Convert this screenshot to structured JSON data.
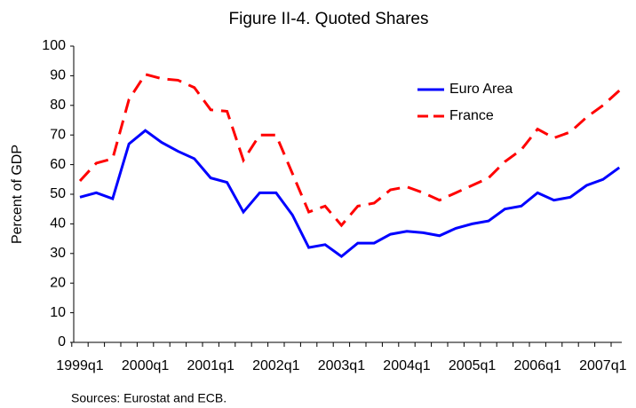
{
  "chart_data": {
    "type": "line",
    "title": "Figure II-4. Quoted Shares",
    "ylabel": "Percent of GDP",
    "source": "Sources: Eurostat and ECB.",
    "categories": [
      "1999q1",
      null,
      null,
      null,
      "2000q1",
      null,
      null,
      null,
      "2001q1",
      null,
      null,
      null,
      "2002q1",
      null,
      null,
      null,
      "2003q1",
      null,
      null,
      null,
      "2004q1",
      null,
      null,
      null,
      "2005q1",
      null,
      null,
      null,
      "2006q1",
      null,
      null,
      null,
      "2007q1",
      null
    ],
    "series": [
      {
        "name": "Euro Area",
        "color": "#0000ff",
        "dash": "solid",
        "values": [
          49,
          50.5,
          48.5,
          67,
          71.5,
          67.5,
          64.5,
          62,
          55.5,
          54,
          44,
          50.5,
          50.5,
          43,
          32,
          33,
          29,
          33.5,
          33.5,
          36.5,
          37.5,
          37,
          36,
          38.5,
          40,
          41,
          45,
          46,
          50.5,
          48,
          49,
          53,
          55,
          59
        ]
      },
      {
        "name": "France",
        "color": "#ff0000",
        "dash": "dashed",
        "values": [
          54.5,
          60.5,
          62,
          82,
          90.5,
          89,
          88.5,
          86,
          78.5,
          78,
          61.5,
          70,
          70,
          57,
          44,
          46,
          39.5,
          46,
          47,
          51.5,
          52.5,
          50.5,
          48,
          50.5,
          53,
          55.5,
          61,
          65,
          72,
          69,
          71,
          76,
          80,
          85
        ]
      }
    ],
    "ylim": [
      0,
      100
    ],
    "yticks": [
      0,
      10,
      20,
      30,
      40,
      50,
      60,
      70,
      80,
      90,
      100
    ],
    "grid": false,
    "legend": "upper right"
  }
}
